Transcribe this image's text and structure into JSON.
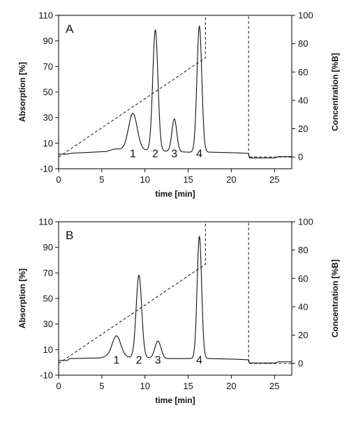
{
  "chart_data": [
    {
      "type": "line",
      "panel_label": "A",
      "xlabel": "time [min]",
      "ylabel_left": "Absorption [%]",
      "ylabel_right": "Concentration [%B]",
      "xlim": [
        0,
        27
      ],
      "ylim_left": [
        -10,
        110
      ],
      "ylim_right": [
        -8.3,
        100
      ],
      "x_ticks": [
        0,
        5,
        10,
        15,
        20,
        25
      ],
      "y_ticks_left": [
        -10,
        10,
        30,
        50,
        70,
        90,
        110
      ],
      "y_ticks_right": [
        0,
        20,
        40,
        60,
        80,
        100
      ],
      "grid": false,
      "baseline": 1.5,
      "baseline_points": [
        [
          0,
          1.5
        ],
        [
          1.0,
          1.5
        ],
        [
          1.6,
          2.2
        ],
        [
          5.5,
          3.5
        ],
        [
          6.5,
          5.5
        ],
        [
          15.0,
          3.0
        ],
        [
          17.5,
          3.0
        ],
        [
          20.5,
          2.5
        ],
        [
          22.0,
          2.0
        ],
        [
          22.1,
          -1.5
        ],
        [
          25.0,
          -1.5
        ],
        [
          25.5,
          -0.5
        ],
        [
          27,
          -0.5
        ]
      ],
      "peaks": [
        {
          "label": "1",
          "time": 8.6,
          "height": 30,
          "width": 0.5
        },
        {
          "label": "2",
          "time": 11.2,
          "height": 96,
          "width": 0.3
        },
        {
          "label": "3",
          "time": 13.4,
          "height": 27,
          "width": 0.28
        },
        {
          "label": "4",
          "time": 16.3,
          "height": 100,
          "width": 0.28
        }
      ],
      "gradient_series": {
        "name": "Concentration [%B]",
        "x": [
          0,
          17,
          17,
          22,
          22,
          27
        ],
        "y": [
          0,
          70,
          100,
          100,
          0,
          0
        ]
      }
    },
    {
      "type": "line",
      "panel_label": "B",
      "xlabel": "time [min]",
      "ylabel_left": "Absorption [%]",
      "ylabel_right": "Concentration [%B]",
      "xlim": [
        0,
        27
      ],
      "ylim_left": [
        -10,
        110
      ],
      "ylim_right": [
        -8.3,
        100
      ],
      "x_ticks": [
        0,
        5,
        10,
        15,
        20,
        25
      ],
      "y_ticks_left": [
        -10,
        10,
        30,
        50,
        70,
        90,
        110
      ],
      "y_ticks_right": [
        0,
        20,
        40,
        60,
        80,
        100
      ],
      "grid": false,
      "baseline": 1.5,
      "baseline_points": [
        [
          0,
          1.5
        ],
        [
          1.0,
          1.5
        ],
        [
          1.3,
          3.0
        ],
        [
          4.8,
          3.5
        ],
        [
          5.5,
          4.5
        ],
        [
          12.5,
          3.0
        ],
        [
          17.5,
          3.0
        ],
        [
          20.5,
          2.5
        ],
        [
          22.0,
          2.0
        ],
        [
          22.1,
          -0.5
        ],
        [
          25.0,
          -0.5
        ],
        [
          25.5,
          0.5
        ],
        [
          27,
          0.5
        ]
      ],
      "peaks": [
        {
          "label": "1",
          "time": 6.7,
          "height": 18,
          "width": 0.5
        },
        {
          "label": "2",
          "time": 9.3,
          "height": 66,
          "width": 0.32
        },
        {
          "label": "3",
          "time": 11.5,
          "height": 15,
          "width": 0.35
        },
        {
          "label": "4",
          "time": 16.3,
          "height": 97,
          "width": 0.26
        }
      ],
      "gradient_series": {
        "name": "Concentration [%B]",
        "x": [
          0,
          17,
          17,
          22,
          22,
          27
        ],
        "y": [
          0,
          70,
          100,
          100,
          0,
          0
        ]
      }
    }
  ]
}
